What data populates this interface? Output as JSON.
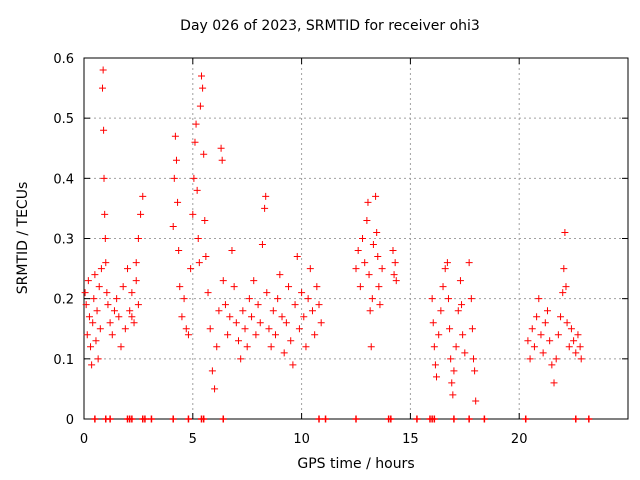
{
  "chart_data": {
    "type": "scatter",
    "title": "Day 026 of 2023, SRMTID for receiver ohi3",
    "xlabel": "GPS time / hours",
    "ylabel": "SRMTID / TECUs",
    "xlim": [
      0,
      25
    ],
    "ylim": [
      0,
      0.6
    ],
    "xticks": [
      0,
      5,
      10,
      15,
      20
    ],
    "xtick_labels": [
      "0",
      "5",
      "10",
      "15",
      "20"
    ],
    "yticks": [
      0,
      0.1,
      0.2,
      0.3,
      0.4,
      0.5,
      0.6
    ],
    "ytick_labels": [
      "0",
      "0.1",
      "0.2",
      "0.3",
      "0.4",
      "0.5",
      "0.6"
    ],
    "grid": true,
    "marker": "+",
    "color": "#ff0000",
    "series": [
      {
        "name": "SRMTID",
        "points": [
          [
            0.05,
            0.21
          ],
          [
            0.1,
            0.19
          ],
          [
            0.15,
            0.14
          ],
          [
            0.2,
            0.23
          ],
          [
            0.25,
            0.17
          ],
          [
            0.3,
            0.12
          ],
          [
            0.35,
            0.09
          ],
          [
            0.4,
            0.16
          ],
          [
            0.45,
            0.2
          ],
          [
            0.5,
            0.24
          ],
          [
            0.55,
            0.13
          ],
          [
            0.6,
            0.18
          ],
          [
            0.65,
            0.1
          ],
          [
            0.7,
            0.22
          ],
          [
            0.75,
            0.15
          ],
          [
            0.8,
            0.25
          ],
          [
            0.85,
            0.55
          ],
          [
            0.88,
            0.58
          ],
          [
            0.9,
            0.48
          ],
          [
            0.92,
            0.4
          ],
          [
            0.95,
            0.34
          ],
          [
            0.98,
            0.3
          ],
          [
            1.0,
            0.26
          ],
          [
            1.05,
            0.21
          ],
          [
            1.1,
            0.19
          ],
          [
            1.2,
            0.16
          ],
          [
            1.3,
            0.14
          ],
          [
            1.4,
            0.18
          ],
          [
            1.5,
            0.2
          ],
          [
            1.6,
            0.17
          ],
          [
            1.7,
            0.12
          ],
          [
            1.8,
            0.22
          ],
          [
            1.9,
            0.15
          ],
          [
            2.0,
            0.25
          ],
          [
            2.1,
            0.18
          ],
          [
            2.2,
            0.21
          ],
          [
            2.3,
            0.16
          ],
          [
            2.4,
            0.26
          ],
          [
            2.5,
            0.3
          ],
          [
            2.6,
            0.34
          ],
          [
            2.7,
            0.37
          ],
          [
            2.4,
            0.23
          ],
          [
            2.5,
            0.19
          ],
          [
            2.2,
            0.17
          ],
          [
            4.1,
            0.32
          ],
          [
            4.15,
            0.4
          ],
          [
            4.2,
            0.47
          ],
          [
            4.25,
            0.43
          ],
          [
            4.3,
            0.36
          ],
          [
            4.35,
            0.28
          ],
          [
            4.4,
            0.22
          ],
          [
            4.5,
            0.17
          ],
          [
            4.6,
            0.2
          ],
          [
            4.7,
            0.15
          ],
          [
            4.8,
            0.14
          ],
          [
            4.9,
            0.25
          ],
          [
            5.0,
            0.34
          ],
          [
            5.05,
            0.4
          ],
          [
            5.1,
            0.46
          ],
          [
            5.15,
            0.49
          ],
          [
            5.2,
            0.38
          ],
          [
            5.25,
            0.3
          ],
          [
            5.3,
            0.26
          ],
          [
            5.35,
            0.52
          ],
          [
            5.4,
            0.57
          ],
          [
            5.45,
            0.55
          ],
          [
            5.5,
            0.44
          ],
          [
            5.55,
            0.33
          ],
          [
            5.6,
            0.27
          ],
          [
            5.7,
            0.21
          ],
          [
            5.8,
            0.15
          ],
          [
            5.9,
            0.08
          ],
          [
            6.0,
            0.05
          ],
          [
            6.1,
            0.12
          ],
          [
            6.2,
            0.18
          ],
          [
            6.3,
            0.45
          ],
          [
            6.35,
            0.43
          ],
          [
            6.4,
            0.23
          ],
          [
            6.5,
            0.19
          ],
          [
            6.6,
            0.14
          ],
          [
            6.7,
            0.17
          ],
          [
            6.8,
            0.28
          ],
          [
            6.9,
            0.22
          ],
          [
            7.0,
            0.16
          ],
          [
            7.1,
            0.13
          ],
          [
            7.2,
            0.1
          ],
          [
            7.3,
            0.18
          ],
          [
            7.4,
            0.15
          ],
          [
            7.5,
            0.12
          ],
          [
            7.6,
            0.2
          ],
          [
            7.7,
            0.17
          ],
          [
            7.8,
            0.23
          ],
          [
            7.9,
            0.14
          ],
          [
            8.0,
            0.19
          ],
          [
            8.1,
            0.16
          ],
          [
            8.2,
            0.29
          ],
          [
            8.3,
            0.35
          ],
          [
            8.35,
            0.37
          ],
          [
            8.4,
            0.21
          ],
          [
            8.5,
            0.15
          ],
          [
            8.6,
            0.12
          ],
          [
            8.7,
            0.18
          ],
          [
            8.8,
            0.14
          ],
          [
            8.9,
            0.2
          ],
          [
            9.0,
            0.24
          ],
          [
            9.1,
            0.17
          ],
          [
            9.2,
            0.11
          ],
          [
            9.3,
            0.16
          ],
          [
            9.4,
            0.22
          ],
          [
            9.5,
            0.13
          ],
          [
            9.6,
            0.09
          ],
          [
            9.7,
            0.19
          ],
          [
            9.8,
            0.27
          ],
          [
            9.9,
            0.15
          ],
          [
            10.0,
            0.21
          ],
          [
            10.1,
            0.17
          ],
          [
            10.2,
            0.12
          ],
          [
            10.3,
            0.2
          ],
          [
            10.4,
            0.25
          ],
          [
            10.5,
            0.18
          ],
          [
            10.6,
            0.14
          ],
          [
            10.7,
            0.22
          ],
          [
            10.8,
            0.19
          ],
          [
            10.9,
            0.16
          ],
          [
            12.5,
            0.25
          ],
          [
            12.6,
            0.28
          ],
          [
            12.7,
            0.22
          ],
          [
            12.8,
            0.3
          ],
          [
            12.9,
            0.26
          ],
          [
            13.0,
            0.33
          ],
          [
            13.05,
            0.36
          ],
          [
            13.1,
            0.24
          ],
          [
            13.15,
            0.18
          ],
          [
            13.2,
            0.12
          ],
          [
            13.25,
            0.2
          ],
          [
            13.3,
            0.29
          ],
          [
            13.4,
            0.37
          ],
          [
            13.45,
            0.31
          ],
          [
            13.5,
            0.27
          ],
          [
            13.55,
            0.22
          ],
          [
            13.6,
            0.19
          ],
          [
            13.7,
            0.25
          ],
          [
            14.2,
            0.28
          ],
          [
            14.25,
            0.24
          ],
          [
            14.3,
            0.26
          ],
          [
            14.35,
            0.23
          ],
          [
            16.0,
            0.2
          ],
          [
            16.05,
            0.16
          ],
          [
            16.1,
            0.12
          ],
          [
            16.15,
            0.09
          ],
          [
            16.2,
            0.07
          ],
          [
            16.3,
            0.14
          ],
          [
            16.4,
            0.18
          ],
          [
            16.5,
            0.22
          ],
          [
            16.6,
            0.25
          ],
          [
            16.7,
            0.26
          ],
          [
            16.75,
            0.2
          ],
          [
            16.8,
            0.15
          ],
          [
            16.85,
            0.1
          ],
          [
            16.9,
            0.06
          ],
          [
            16.95,
            0.04
          ],
          [
            17.0,
            0.08
          ],
          [
            17.1,
            0.12
          ],
          [
            17.2,
            0.18
          ],
          [
            17.3,
            0.23
          ],
          [
            17.35,
            0.19
          ],
          [
            17.4,
            0.14
          ],
          [
            17.5,
            0.11
          ],
          [
            17.7,
            0.26
          ],
          [
            17.8,
            0.2
          ],
          [
            17.85,
            0.15
          ],
          [
            17.9,
            0.1
          ],
          [
            17.95,
            0.08
          ],
          [
            18.0,
            0.03
          ],
          [
            20.4,
            0.13
          ],
          [
            20.5,
            0.1
          ],
          [
            20.6,
            0.15
          ],
          [
            20.7,
            0.12
          ],
          [
            20.8,
            0.17
          ],
          [
            20.9,
            0.2
          ],
          [
            21.0,
            0.14
          ],
          [
            21.1,
            0.11
          ],
          [
            21.2,
            0.16
          ],
          [
            21.3,
            0.18
          ],
          [
            21.4,
            0.13
          ],
          [
            21.5,
            0.09
          ],
          [
            21.6,
            0.06
          ],
          [
            21.7,
            0.1
          ],
          [
            21.8,
            0.14
          ],
          [
            21.9,
            0.17
          ],
          [
            22.0,
            0.21
          ],
          [
            22.05,
            0.25
          ],
          [
            22.1,
            0.31
          ],
          [
            22.15,
            0.22
          ],
          [
            22.2,
            0.16
          ],
          [
            22.3,
            0.12
          ],
          [
            22.4,
            0.15
          ],
          [
            22.5,
            0.13
          ],
          [
            22.6,
            0.11
          ],
          [
            22.7,
            0.14
          ],
          [
            22.8,
            0.12
          ],
          [
            22.85,
            0.1
          ]
        ]
      }
    ],
    "zero_markers_x": [
      0.5,
      1.0,
      1.2,
      2.0,
      2.1,
      2.2,
      2.7,
      2.8,
      3.1,
      4.1,
      4.8,
      5.4,
      5.5,
      6.4,
      10.8,
      11.1,
      12.5,
      14.0,
      14.1,
      15.3,
      15.9,
      16.0,
      16.1,
      17.0,
      17.7,
      18.4,
      20.3,
      22.6,
      23.2
    ]
  }
}
